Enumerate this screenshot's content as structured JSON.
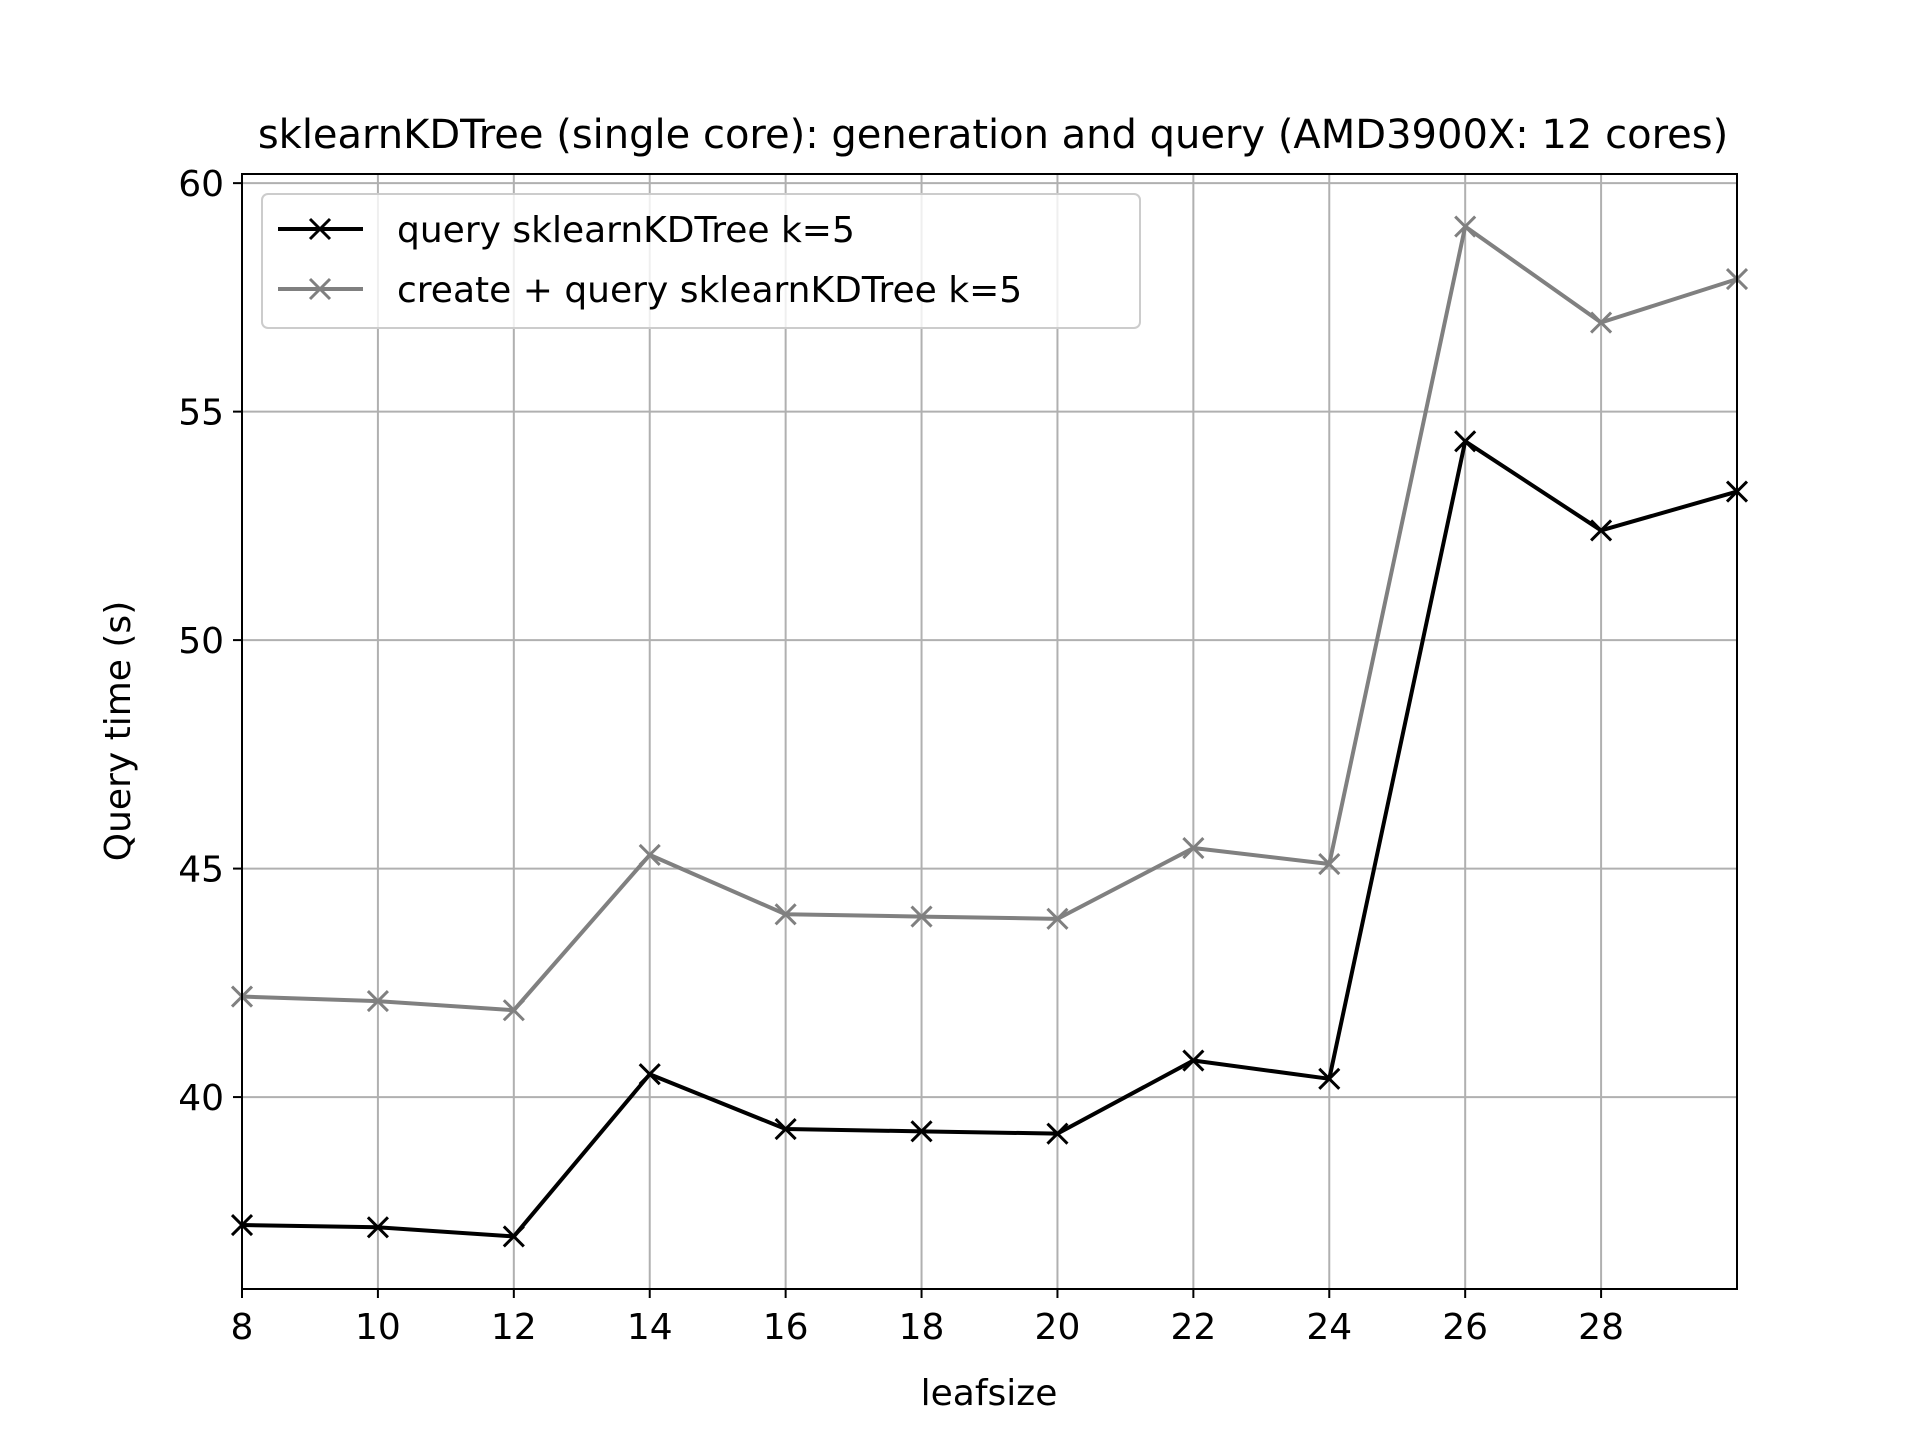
{
  "chart_data": {
    "type": "line",
    "title": "sklearnKDTree (single core): generation and query (AMD3900X: 12 cores)",
    "xlabel": "leafsize",
    "ylabel": "Query time (s)",
    "xlim": [
      8,
      30
    ],
    "ylim": [
      35.8,
      60.2
    ],
    "xticks": [
      8,
      10,
      12,
      14,
      16,
      18,
      20,
      22,
      24,
      26,
      28
    ],
    "yticks": [
      40,
      45,
      50,
      55,
      60
    ],
    "grid": true,
    "legend_position": "upper left",
    "x": [
      8,
      10,
      12,
      14,
      16,
      18,
      20,
      22,
      24,
      26,
      28,
      30
    ],
    "series": [
      {
        "name": "query sklearnKDTree k=5",
        "color": "#000000",
        "marker": "x",
        "values": [
          37.2,
          37.15,
          36.95,
          40.5,
          39.3,
          39.25,
          39.2,
          40.8,
          40.4,
          54.35,
          52.4,
          53.25
        ]
      },
      {
        "name": "create + query sklearnKDTree k=5",
        "color": "#808080",
        "marker": "x",
        "values": [
          42.2,
          42.1,
          41.9,
          45.3,
          44.0,
          43.95,
          43.9,
          45.45,
          45.1,
          59.05,
          56.95,
          57.9
        ]
      }
    ]
  }
}
